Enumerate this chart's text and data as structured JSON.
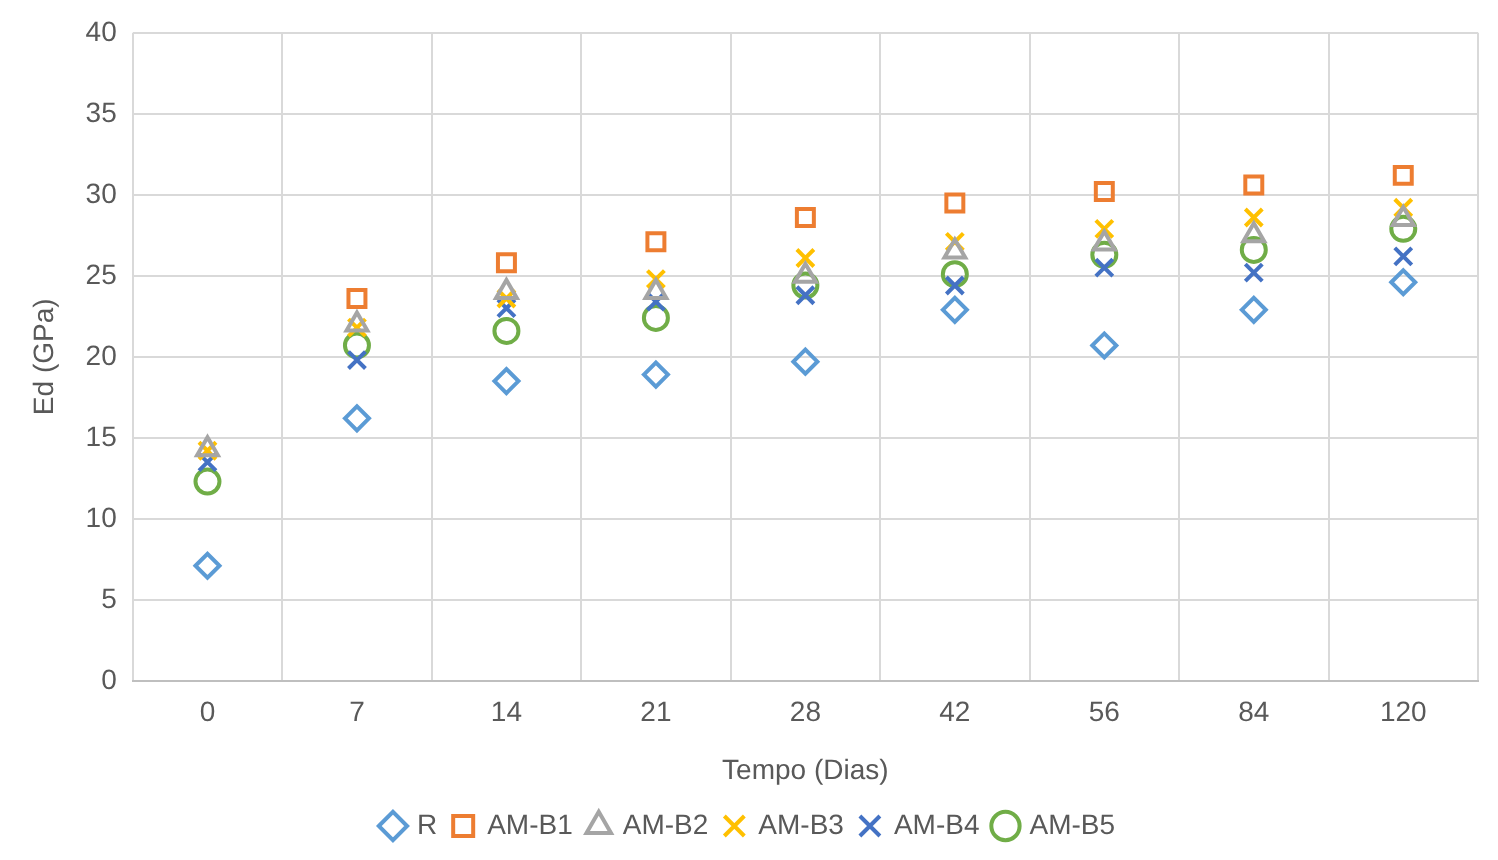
{
  "chart_data": {
    "type": "scatter",
    "xlabel": "Tempo (Dias)",
    "ylabel": "Ed (GPa)",
    "categories": [
      "0",
      "7",
      "14",
      "21",
      "28",
      "42",
      "56",
      "84",
      "120"
    ],
    "series": [
      {
        "name": "R",
        "color": "#5b9bd5",
        "marker": "diamond",
        "values": [
          7.1,
          16.2,
          18.5,
          18.9,
          19.7,
          22.9,
          20.7,
          22.9,
          24.6
        ]
      },
      {
        "name": "AM-B1",
        "color": "#ed7d31",
        "marker": "square",
        "values": [
          null,
          23.6,
          25.8,
          27.1,
          28.6,
          29.5,
          30.2,
          30.6,
          31.2
        ]
      },
      {
        "name": "AM-B2",
        "color": "#a5a5a5",
        "marker": "triangle",
        "values": [
          14.3,
          22,
          24,
          24,
          25,
          26.5,
          27,
          27.5,
          28.5
        ]
      },
      {
        "name": "AM-B3",
        "color": "#ffc000",
        "marker": "cross",
        "values": [
          14.2,
          21.8,
          23.6,
          24.8,
          26.1,
          27.1,
          27.9,
          28.6,
          29.2
        ]
      },
      {
        "name": "AM-B4",
        "color": "#4472c4",
        "marker": "cross",
        "values": [
          13.5,
          19.8,
          23,
          23.4,
          23.8,
          24.4,
          25.5,
          25.2,
          26.2
        ]
      },
      {
        "name": "AM-B5",
        "color": "#70ad47",
        "marker": "circle",
        "values": [
          12.3,
          20.7,
          21.6,
          22.4,
          24.4,
          25.1,
          26.3,
          26.6,
          27.9
        ]
      }
    ],
    "ylim": [
      0,
      40
    ],
    "yticks": [
      0,
      5,
      10,
      15,
      20,
      25,
      30,
      35,
      40
    ],
    "grid": true,
    "legend": "bottom"
  }
}
